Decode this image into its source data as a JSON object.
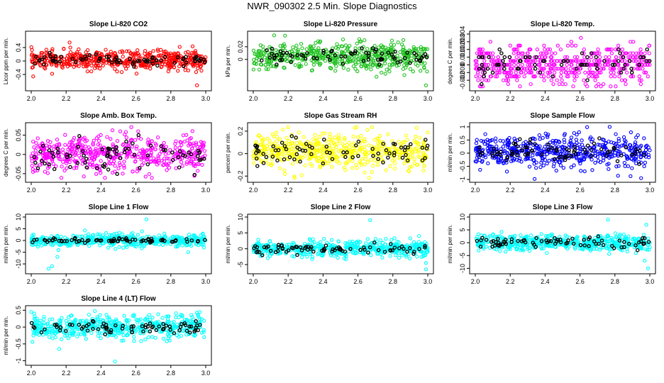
{
  "page": {
    "title": "NWR_090302  2.5 Min. Slope Diagnostics"
  },
  "colors": {
    "red": "#ff0000",
    "green": "#22c222",
    "magenta": "#ff00ff",
    "yellow": "#ffff00",
    "blue": "#0000ff",
    "cyan": "#00ffff",
    "black": "#000000"
  },
  "chart_data": [
    {
      "type": "scatter",
      "title": "Slope Li-820 CO2",
      "ylabel": "Licor ppm per min.",
      "color": "red",
      "xlim": [
        2.0,
        3.0
      ],
      "ylim": [
        -0.8,
        0.8
      ],
      "xticks": [
        2.0,
        2.2,
        2.4,
        2.6,
        2.8,
        3.0
      ],
      "yticks": [
        -0.4,
        0.0,
        0.4
      ],
      "center": 0.03,
      "spread": 0.14,
      "black_spread": 0.07,
      "outliers": [
        [
          2.22,
          0.55
        ],
        [
          2.95,
          -0.72
        ],
        [
          2.12,
          -0.38
        ]
      ]
    },
    {
      "type": "scatter",
      "title": "Slope Li-820 Pressure",
      "ylabel": "kPa per min.",
      "color": "green",
      "xlim": [
        2.0,
        3.0
      ],
      "ylim": [
        -0.045,
        0.04
      ],
      "xticks": [
        2.0,
        2.2,
        2.4,
        2.6,
        2.8,
        3.0
      ],
      "yticks": [
        0.0,
        0.02
      ],
      "center": 0.004,
      "spread": 0.011,
      "black_spread": 0.006,
      "outliers": [
        [
          2.12,
          0.038
        ],
        [
          2.99,
          -0.041
        ]
      ]
    },
    {
      "type": "scatter",
      "title": "Slope Li-820 Temp.",
      "ylabel": "degees C per min.",
      "color": "magenta",
      "xlim": [
        2.0,
        3.0
      ],
      "ylim": [
        -0.003,
        0.004
      ],
      "xticks": [
        2.0,
        2.2,
        2.4,
        2.6,
        2.8,
        3.0
      ],
      "yticks": [
        -0.002,
        -0.001,
        0.0,
        0.001,
        0.002,
        0.003,
        0.004
      ],
      "center": 0.0,
      "spread": 0.0012,
      "black_spread": 0.001,
      "quantize": 0.0005,
      "outliers": [
        [
          2.2,
          0.0025
        ],
        [
          2.55,
          0.003
        ]
      ]
    },
    {
      "type": "scatter",
      "title": "Slope Amb. Box Temp.",
      "ylabel": "degrees C per min.",
      "color": "magenta",
      "xlim": [
        2.0,
        3.0
      ],
      "ylim": [
        -0.065,
        0.075
      ],
      "xticks": [
        2.0,
        2.2,
        2.4,
        2.6,
        2.8,
        3.0
      ],
      "yticks": [
        -0.05,
        0.0,
        0.05
      ],
      "center": 0.0,
      "spread": 0.024,
      "black_spread": 0.02,
      "outliers": []
    },
    {
      "type": "scatter",
      "title": "Slope Gas Stream RH",
      "ylabel": "percent per min.",
      "color": "yellow",
      "xlim": [
        2.0,
        3.0
      ],
      "ylim": [
        -0.23,
        0.25
      ],
      "xticks": [
        2.0,
        2.2,
        2.4,
        2.6,
        2.8,
        3.0
      ],
      "yticks": [
        -0.2,
        0.0,
        0.2
      ],
      "center": 0.02,
      "spread": 0.08,
      "black_spread": 0.06,
      "outliers": []
    },
    {
      "type": "scatter",
      "title": "Slope Sample Flow",
      "ylabel": "ml/min per min.",
      "color": "blue",
      "xlim": [
        2.0,
        3.0
      ],
      "ylim": [
        -1.0,
        1.05
      ],
      "xticks": [
        2.0,
        2.2,
        2.4,
        2.6,
        2.8,
        3.0
      ],
      "yticks": [
        -1.0,
        -0.5,
        0.0,
        0.5,
        1.0
      ],
      "center": 0.05,
      "spread": 0.3,
      "black_spread": 0.2,
      "outliers": [
        [
          2.77,
          1.0
        ],
        [
          2.95,
          -0.95
        ],
        [
          2.34,
          -0.98
        ]
      ]
    },
    {
      "type": "scatter",
      "title": "Slope Line 1 Flow",
      "ylabel": "ml/min per min.",
      "color": "cyan",
      "xlim": [
        2.0,
        3.0
      ],
      "ylim": [
        -13,
        10
      ],
      "xticks": [
        2.0,
        2.2,
        2.4,
        2.6,
        2.8,
        3.0
      ],
      "yticks": [
        -10,
        -5,
        0,
        5,
        10
      ],
      "center": 0.0,
      "spread": 1.3,
      "black_spread": 0.5,
      "outliers": [
        [
          2.1,
          -12
        ],
        [
          2.12,
          -11
        ],
        [
          2.15,
          -7
        ],
        [
          2.66,
          9
        ],
        [
          2.9,
          -5
        ]
      ]
    },
    {
      "type": "scatter",
      "title": "Slope Line 2 Flow",
      "ylabel": "ml/min per min.",
      "color": "cyan",
      "xlim": [
        2.0,
        3.0
      ],
      "ylim": [
        -7,
        10
      ],
      "xticks": [
        2.0,
        2.2,
        2.4,
        2.6,
        2.8,
        3.0
      ],
      "yticks": [
        -5,
        0,
        5,
        10
      ],
      "center": 0.0,
      "spread": 1.2,
      "black_spread": 0.8,
      "outliers": [
        [
          2.67,
          9
        ],
        [
          2.99,
          -6.5
        ],
        [
          2.99,
          -4.5
        ],
        [
          2.95,
          4
        ]
      ]
    },
    {
      "type": "scatter",
      "title": "Slope Line 3 Flow",
      "ylabel": "ml/min per min.",
      "color": "cyan",
      "xlim": [
        2.0,
        3.0
      ],
      "ylim": [
        -11,
        10
      ],
      "xticks": [
        2.0,
        2.2,
        2.4,
        2.6,
        2.8,
        3.0
      ],
      "yticks": [
        -10,
        -5,
        0,
        5,
        10
      ],
      "center": 0.0,
      "spread": 1.5,
      "black_spread": 1.0,
      "outliers": [
        [
          2.76,
          9
        ],
        [
          2.99,
          -10
        ],
        [
          2.97,
          -7
        ],
        [
          2.98,
          7
        ],
        [
          2.92,
          -4
        ]
      ]
    },
    {
      "type": "scatter",
      "title": "Slope Line 4 (LT) Flow",
      "ylabel": "ml/min per min.",
      "color": "cyan",
      "xlim": [
        2.0,
        3.0
      ],
      "ylim": [
        -1.05,
        0.55
      ],
      "xticks": [
        2.0,
        2.2,
        2.4,
        2.6,
        2.8,
        3.0
      ],
      "yticks": [
        -1.0,
        -0.5,
        0.0,
        0.5
      ],
      "center": 0.0,
      "spread": 0.17,
      "black_spread": 0.1,
      "outliers": [
        [
          2.48,
          -1.02
        ],
        [
          2.16,
          -0.65
        ],
        [
          2.0,
          0.45
        ]
      ]
    }
  ]
}
